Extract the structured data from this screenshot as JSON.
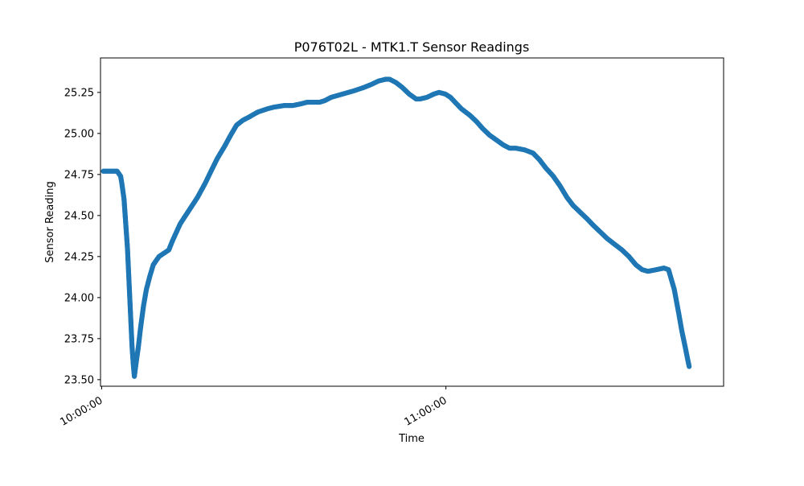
{
  "chart_data": {
    "type": "scatter",
    "title": "P076T02L - MTK1.T Sensor Readings",
    "xlabel": "Time",
    "ylabel": "Sensor Reading",
    "x_unit": "time",
    "xlim": [
      "09:59:48",
      "11:48:24"
    ],
    "ylim": [
      23.46,
      25.46
    ],
    "x_ticks": [
      {
        "value": "10:00:00",
        "label": "10:00:00"
      },
      {
        "value": "11:00:00",
        "label": "11:00:00"
      }
    ],
    "y_ticks": [
      {
        "value": 23.5,
        "label": "23.50"
      },
      {
        "value": 23.75,
        "label": "23.75"
      },
      {
        "value": 24.0,
        "label": "24.00"
      },
      {
        "value": 24.25,
        "label": "24.25"
      },
      {
        "value": 24.5,
        "label": "24.50"
      },
      {
        "value": 24.75,
        "label": "24.75"
      },
      {
        "value": 25.0,
        "label": "25.00"
      },
      {
        "value": 25.25,
        "label": "25.25"
      }
    ],
    "grid": false,
    "legend": "none",
    "series": [
      {
        "color": "#1f77b4",
        "points": [
          [
            "10:00:18",
            24.77
          ],
          [
            "10:01:12",
            24.77
          ],
          [
            "10:02:42",
            24.77
          ],
          [
            "10:03:18",
            24.74
          ],
          [
            "10:03:30",
            24.7
          ],
          [
            "10:03:54",
            24.6
          ],
          [
            "10:04:06",
            24.5
          ],
          [
            "10:04:18",
            24.4
          ],
          [
            "10:04:30",
            24.3
          ],
          [
            "10:04:42",
            24.15
          ],
          [
            "10:04:54",
            24.0
          ],
          [
            "10:05:06",
            23.85
          ],
          [
            "10:05:18",
            23.7
          ],
          [
            "10:05:30",
            23.6
          ],
          [
            "10:05:42",
            23.52
          ],
          [
            "10:06:00",
            23.6
          ],
          [
            "10:06:24",
            23.7
          ],
          [
            "10:06:48",
            23.82
          ],
          [
            "10:07:18",
            23.95
          ],
          [
            "10:07:48",
            24.05
          ],
          [
            "10:08:24",
            24.13
          ],
          [
            "10:09:00",
            24.2
          ],
          [
            "10:10:00",
            24.25
          ],
          [
            "10:11:42",
            24.29
          ],
          [
            "10:12:24",
            24.35
          ],
          [
            "10:13:42",
            24.45
          ],
          [
            "10:15:12",
            24.53
          ],
          [
            "10:16:42",
            24.61
          ],
          [
            "10:18:06",
            24.7
          ],
          [
            "10:19:12",
            24.78
          ],
          [
            "10:20:12",
            24.85
          ],
          [
            "10:21:24",
            24.92
          ],
          [
            "10:22:30",
            24.99
          ],
          [
            "10:23:30",
            25.05
          ],
          [
            "10:24:36",
            25.08
          ],
          [
            "10:25:42",
            25.1
          ],
          [
            "10:27:12",
            25.13
          ],
          [
            "10:28:54",
            25.15
          ],
          [
            "10:30:00",
            25.16
          ],
          [
            "10:31:48",
            25.17
          ],
          [
            "10:33:18",
            25.17
          ],
          [
            "10:34:42",
            25.18
          ],
          [
            "10:35:48",
            25.19
          ],
          [
            "10:38:00",
            25.19
          ],
          [
            "10:38:54",
            25.2
          ],
          [
            "10:40:00",
            25.22
          ],
          [
            "10:42:00",
            25.24
          ],
          [
            "10:44:00",
            25.26
          ],
          [
            "10:45:42",
            25.28
          ],
          [
            "10:47:06",
            25.3
          ],
          [
            "10:48:18",
            25.32
          ],
          [
            "10:49:30",
            25.33
          ],
          [
            "10:50:12",
            25.33
          ],
          [
            "10:51:18",
            25.31
          ],
          [
            "10:52:24",
            25.28
          ],
          [
            "10:53:36",
            25.24
          ],
          [
            "10:54:48",
            25.21
          ],
          [
            "10:55:30",
            25.21
          ],
          [
            "10:56:42",
            25.22
          ],
          [
            "10:57:54",
            25.24
          ],
          [
            "10:58:48",
            25.25
          ],
          [
            "10:59:54",
            25.24
          ],
          [
            "11:00:48",
            25.22
          ],
          [
            "11:01:36",
            25.19
          ],
          [
            "11:02:42",
            25.15
          ],
          [
            "11:04:12",
            25.11
          ],
          [
            "11:05:24",
            25.07
          ],
          [
            "11:06:24",
            25.03
          ],
          [
            "11:07:36",
            24.99
          ],
          [
            "11:08:48",
            24.96
          ],
          [
            "11:10:00",
            24.93
          ],
          [
            "11:11:06",
            24.91
          ],
          [
            "11:12:12",
            24.91
          ],
          [
            "11:13:42",
            24.9
          ],
          [
            "11:15:12",
            24.88
          ],
          [
            "11:16:18",
            24.84
          ],
          [
            "11:17:24",
            24.79
          ],
          [
            "11:18:42",
            24.74
          ],
          [
            "11:19:54",
            24.68
          ],
          [
            "11:21:06",
            24.61
          ],
          [
            "11:22:12",
            24.56
          ],
          [
            "11:23:24",
            24.52
          ],
          [
            "11:24:36",
            24.48
          ],
          [
            "11:25:42",
            24.44
          ],
          [
            "11:26:54",
            24.4
          ],
          [
            "11:28:06",
            24.36
          ],
          [
            "11:29:12",
            24.33
          ],
          [
            "11:30:42",
            24.29
          ],
          [
            "11:31:54",
            24.25
          ],
          [
            "11:33:06",
            24.2
          ],
          [
            "11:34:12",
            24.17
          ],
          [
            "11:35:12",
            24.16
          ],
          [
            "11:36:42",
            24.17
          ],
          [
            "11:38:00",
            24.18
          ],
          [
            "11:38:48",
            24.17
          ],
          [
            "11:39:48",
            24.05
          ],
          [
            "11:40:36",
            23.9
          ],
          [
            "11:41:06",
            23.8
          ],
          [
            "11:41:42",
            23.7
          ],
          [
            "11:42:06",
            23.63
          ],
          [
            "11:42:24",
            23.58
          ]
        ]
      }
    ]
  }
}
